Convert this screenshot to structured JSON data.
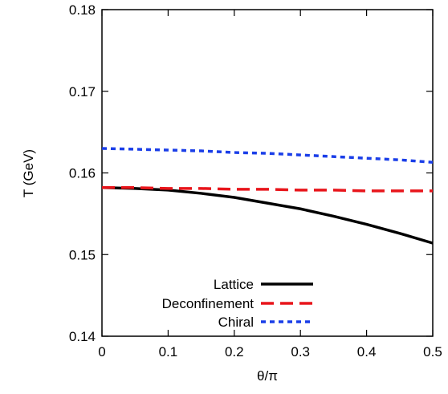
{
  "chart_data": {
    "type": "line",
    "xlabel": "θ/π",
    "ylabel": "T (GeV)",
    "xlim": [
      0,
      0.5
    ],
    "ylim": [
      0.14,
      0.18
    ],
    "xticks": [
      "0",
      "0.1",
      "0.2",
      "0.3",
      "0.4",
      "0.5"
    ],
    "yticks": [
      "0.14",
      "0.15",
      "0.16",
      "0.17",
      "0.18"
    ],
    "grid": false,
    "legend_position": "bottom-left",
    "series": [
      {
        "name": "Lattice",
        "color": "#000000",
        "dash": "solid",
        "x": [
          0,
          0.05,
          0.1,
          0.15,
          0.2,
          0.25,
          0.3,
          0.35,
          0.4,
          0.45,
          0.5
        ],
        "y": [
          0.1582,
          0.1581,
          0.1579,
          0.1575,
          0.157,
          0.1563,
          0.1556,
          0.1547,
          0.1537,
          0.1526,
          0.1514
        ]
      },
      {
        "name": "Deconfinement",
        "color": "#e8151b",
        "dash": "dashed",
        "x": [
          0,
          0.05,
          0.1,
          0.15,
          0.2,
          0.25,
          0.3,
          0.35,
          0.4,
          0.45,
          0.5
        ],
        "y": [
          0.1582,
          0.1582,
          0.1581,
          0.1581,
          0.158,
          0.158,
          0.1579,
          0.1579,
          0.1578,
          0.1578,
          0.1578
        ]
      },
      {
        "name": "Chiral",
        "color": "#1a3ee8",
        "dash": "dotted",
        "x": [
          0,
          0.05,
          0.1,
          0.15,
          0.2,
          0.25,
          0.3,
          0.35,
          0.4,
          0.45,
          0.5
        ],
        "y": [
          0.163,
          0.1629,
          0.1628,
          0.1627,
          0.1625,
          0.1624,
          0.1622,
          0.162,
          0.1618,
          0.1616,
          0.1613
        ]
      }
    ]
  }
}
